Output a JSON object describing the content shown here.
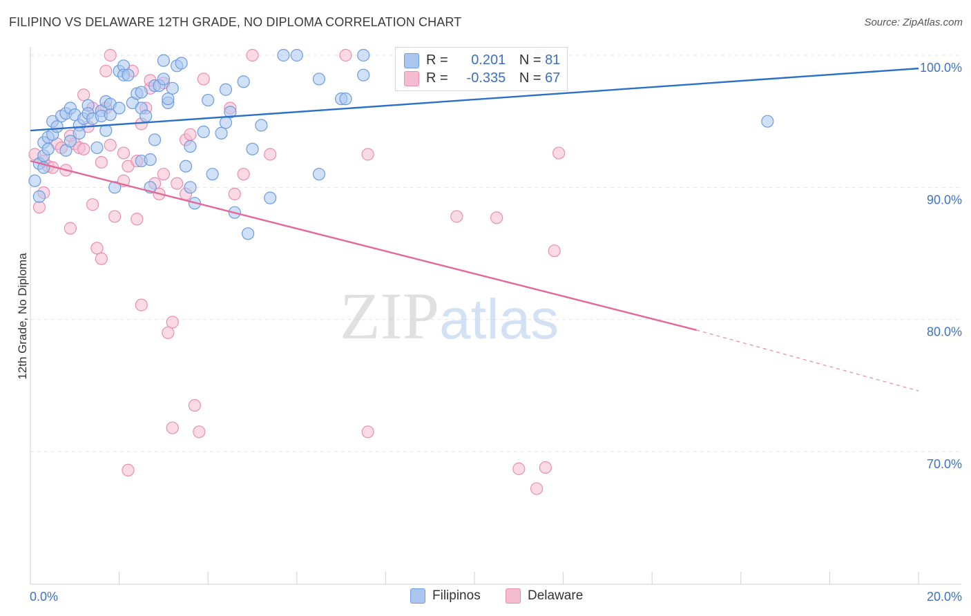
{
  "title": "FILIPINO VS DELAWARE 12TH GRADE, NO DIPLOMA CORRELATION CHART",
  "source": "Source: ZipAtlas.com",
  "watermark": {
    "zip": "ZIP",
    "atlas": "atlas"
  },
  "colors": {
    "blue_fill": "#aac6ef",
    "blue_stroke": "#6c9be0",
    "blue_line": "#2a6fc9",
    "pink_fill": "#f5bcd0",
    "pink_stroke": "#e98eb0",
    "pink_line": "#e0699a",
    "axis_text": "#3d72c4",
    "grid": "#e3e3e3"
  },
  "legend": {
    "rows": [
      {
        "r_label": "R =",
        "r_value": "0.201",
        "n_label": "N =",
        "n_value": "81",
        "color": "#aac6ef"
      },
      {
        "r_label": "R =",
        "r_value": "-0.335",
        "n_label": "N =",
        "n_value": "67",
        "color": "#f5bcd0"
      }
    ]
  },
  "bottom_legend": [
    {
      "label": "Filipinos",
      "color": "#aac6ef"
    },
    {
      "label": "Delaware",
      "color": "#f5bcd0"
    }
  ],
  "chart_data": {
    "type": "scatter",
    "title": "FILIPINO VS DELAWARE 12TH GRADE, NO DIPLOMA CORRELATION CHART",
    "xlabel": "",
    "ylabel": "12th Grade, No Diploma",
    "xlim": [
      0,
      20
    ],
    "ylim": [
      60,
      101.5
    ],
    "x_tick_labels": [
      {
        "value": 0,
        "label": "0.0%"
      },
      {
        "value": 20,
        "label": "20.0%"
      }
    ],
    "y_tick_labels": [
      {
        "value": 100,
        "label": "100.0%"
      },
      {
        "value": 90,
        "label": "90.0%"
      },
      {
        "value": 80,
        "label": "80.0%"
      },
      {
        "value": 70,
        "label": "70.0%"
      }
    ],
    "grid": true,
    "legend_position": "top-center",
    "series": [
      {
        "name": "Filipinos",
        "r": 0.201,
        "n": 81,
        "trend": {
          "x": [
            0,
            20
          ],
          "y": [
            94.3,
            99.0
          ]
        },
        "points": [
          [
            0.1,
            90.5
          ],
          [
            0.2,
            89.3
          ],
          [
            0.2,
            91.8
          ],
          [
            0.3,
            93.4
          ],
          [
            0.3,
            92.4
          ],
          [
            0.4,
            92.9
          ],
          [
            0.4,
            93.8
          ],
          [
            0.5,
            95.0
          ],
          [
            0.5,
            94.0
          ],
          [
            0.6,
            94.6
          ],
          [
            0.7,
            95.4
          ],
          [
            0.8,
            95.6
          ],
          [
            0.8,
            92.8
          ],
          [
            0.9,
            96.0
          ],
          [
            0.9,
            93.5
          ],
          [
            1.0,
            95.5
          ],
          [
            1.1,
            94.7
          ],
          [
            1.1,
            94.1
          ],
          [
            1.2,
            95.2
          ],
          [
            1.3,
            96.2
          ],
          [
            1.3,
            95.6
          ],
          [
            1.4,
            95.2
          ],
          [
            1.5,
            93.0
          ],
          [
            1.6,
            95.8
          ],
          [
            1.6,
            95.4
          ],
          [
            1.7,
            96.5
          ],
          [
            1.7,
            94.3
          ],
          [
            1.8,
            96.3
          ],
          [
            1.8,
            95.5
          ],
          [
            1.9,
            90.0
          ],
          [
            2.0,
            96.0
          ],
          [
            2.0,
            98.8
          ],
          [
            2.1,
            99.2
          ],
          [
            2.1,
            98.5
          ],
          [
            2.2,
            98.5
          ],
          [
            2.3,
            96.4
          ],
          [
            2.4,
            97.1
          ],
          [
            2.5,
            92.0
          ],
          [
            2.5,
            97.2
          ],
          [
            2.5,
            96.0
          ],
          [
            2.6,
            95.4
          ],
          [
            2.7,
            92.1
          ],
          [
            2.7,
            90.0
          ],
          [
            2.8,
            93.6
          ],
          [
            2.8,
            97.7
          ],
          [
            2.9,
            97.7
          ],
          [
            3.0,
            98.2
          ],
          [
            3.0,
            99.6
          ],
          [
            3.1,
            96.4
          ],
          [
            3.1,
            96.7
          ],
          [
            3.2,
            97.5
          ],
          [
            3.3,
            99.2
          ],
          [
            3.4,
            99.4
          ],
          [
            3.5,
            91.6
          ],
          [
            3.6,
            93.1
          ],
          [
            3.6,
            90.0
          ],
          [
            3.7,
            88.8
          ],
          [
            3.9,
            94.2
          ],
          [
            4.0,
            96.6
          ],
          [
            4.1,
            91.0
          ],
          [
            4.3,
            94.1
          ],
          [
            4.4,
            97.4
          ],
          [
            4.4,
            94.9
          ],
          [
            4.5,
            95.7
          ],
          [
            4.6,
            88.1
          ],
          [
            4.8,
            98.0
          ],
          [
            4.9,
            86.5
          ],
          [
            5.0,
            92.9
          ],
          [
            5.2,
            94.7
          ],
          [
            5.4,
            89.2
          ],
          [
            5.7,
            100.0
          ],
          [
            6.0,
            100.0
          ],
          [
            6.5,
            98.2
          ],
          [
            6.5,
            91.0
          ],
          [
            7.0,
            96.7
          ],
          [
            7.1,
            96.7
          ],
          [
            7.5,
            98.5
          ],
          [
            7.5,
            100.0
          ],
          [
            11.5,
            100.0
          ],
          [
            16.6,
            95.0
          ],
          [
            0.3,
            91.5
          ]
        ]
      },
      {
        "name": "Delaware",
        "r": -0.335,
        "n": 67,
        "trend": {
          "x": [
            0,
            15
          ],
          "y": [
            92.0,
            79.2
          ],
          "dashed_to": [
            20,
            74.6
          ]
        },
        "points": [
          [
            0.1,
            92.5
          ],
          [
            0.2,
            88.5
          ],
          [
            0.3,
            89.6
          ],
          [
            0.3,
            92.0
          ],
          [
            0.4,
            91.6
          ],
          [
            0.5,
            91.5
          ],
          [
            0.6,
            93.3
          ],
          [
            0.7,
            93.0
          ],
          [
            0.8,
            91.3
          ],
          [
            0.9,
            93.9
          ],
          [
            0.9,
            86.9
          ],
          [
            1.0,
            93.3
          ],
          [
            1.1,
            93.0
          ],
          [
            1.2,
            97.0
          ],
          [
            1.2,
            92.9
          ],
          [
            1.3,
            94.6
          ],
          [
            1.4,
            96.0
          ],
          [
            1.4,
            88.7
          ],
          [
            1.5,
            85.4
          ],
          [
            1.6,
            84.6
          ],
          [
            1.6,
            91.9
          ],
          [
            1.7,
            96.0
          ],
          [
            1.7,
            98.8
          ],
          [
            1.8,
            93.2
          ],
          [
            1.8,
            100.0
          ],
          [
            1.9,
            87.8
          ],
          [
            2.1,
            92.6
          ],
          [
            2.1,
            90.5
          ],
          [
            2.2,
            91.6
          ],
          [
            2.2,
            68.6
          ],
          [
            2.3,
            98.8
          ],
          [
            2.4,
            87.6
          ],
          [
            2.4,
            92.0
          ],
          [
            2.5,
            81.1
          ],
          [
            2.5,
            94.8
          ],
          [
            2.6,
            96.0
          ],
          [
            2.7,
            97.5
          ],
          [
            2.7,
            98.1
          ],
          [
            2.8,
            90.3
          ],
          [
            2.9,
            89.5
          ],
          [
            3.0,
            91.0
          ],
          [
            3.0,
            97.9
          ],
          [
            3.1,
            79.0
          ],
          [
            3.2,
            79.8
          ],
          [
            3.2,
            71.8
          ],
          [
            3.3,
            90.3
          ],
          [
            3.5,
            89.5
          ],
          [
            3.5,
            93.6
          ],
          [
            3.6,
            94.0
          ],
          [
            3.7,
            73.5
          ],
          [
            3.8,
            71.5
          ],
          [
            3.9,
            98.2
          ],
          [
            4.5,
            96.0
          ],
          [
            4.6,
            89.5
          ],
          [
            4.8,
            91.0
          ],
          [
            5.0,
            100.0
          ],
          [
            5.4,
            92.5
          ],
          [
            7.1,
            100.0
          ],
          [
            7.6,
            92.5
          ],
          [
            7.6,
            71.5
          ],
          [
            9.6,
            87.8
          ],
          [
            10.5,
            87.7
          ],
          [
            11.0,
            68.7
          ],
          [
            11.4,
            67.2
          ],
          [
            11.6,
            68.8
          ],
          [
            11.8,
            85.2
          ],
          [
            11.9,
            92.6
          ]
        ]
      }
    ]
  }
}
